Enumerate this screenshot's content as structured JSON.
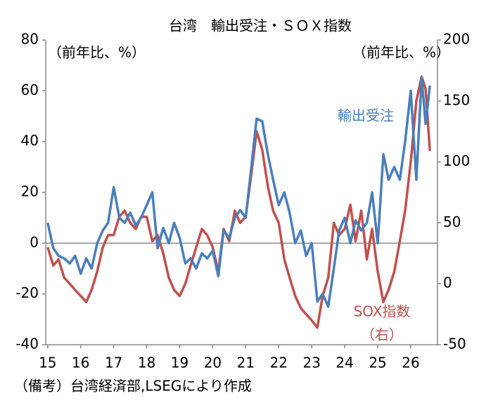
{
  "chart_data": {
    "type": "line",
    "title": "台湾　輸出受注・ＳＯＸ指数",
    "y_label": "（前年比、%）",
    "y2_label": "（前年比、%）",
    "note": "（備考）台湾経済部,LSEGにより作成",
    "x": [
      2015,
      2015.17,
      2015.33,
      2015.5,
      2015.67,
      2015.83,
      2016,
      2016.17,
      2016.33,
      2016.5,
      2016.67,
      2016.83,
      2017,
      2017.17,
      2017.33,
      2017.5,
      2017.67,
      2017.83,
      2018,
      2018.17,
      2018.33,
      2018.5,
      2018.67,
      2018.83,
      2019,
      2019.17,
      2019.33,
      2019.5,
      2019.67,
      2019.83,
      2020,
      2020.17,
      2020.33,
      2020.5,
      2020.67,
      2020.83,
      2021,
      2021.17,
      2021.33,
      2021.5,
      2021.67,
      2021.83,
      2022,
      2022.17,
      2022.33,
      2022.5,
      2022.67,
      2022.83,
      2023,
      2023.17,
      2023.33,
      2023.5,
      2023.67,
      2023.83,
      2024,
      2024.17,
      2024.33,
      2024.5,
      2024.67,
      2024.83,
      2025,
      2025.17,
      2025.33,
      2025.5,
      2025.67,
      2025.83,
      2026,
      2026.17,
      2026.33,
      2026.45,
      2026.58
    ],
    "series": [
      {
        "name": "輸出受注",
        "color": "#4a7ebb",
        "axis": "y",
        "values": [
          8,
          -2,
          -5,
          -6,
          -8,
          -5,
          -12,
          -6,
          -10,
          0,
          5,
          8,
          22,
          10,
          8,
          12,
          7,
          10,
          15,
          20,
          -2,
          6,
          0,
          8,
          2,
          -8,
          -6,
          -10,
          -4,
          -6,
          -3,
          -13,
          5,
          2,
          10,
          13,
          10,
          30,
          49,
          48,
          35,
          25,
          15,
          20,
          12,
          0,
          5,
          -5,
          0,
          -23,
          -20,
          -25,
          -10,
          5,
          10,
          0,
          9,
          5,
          8,
          20,
          0,
          35,
          25,
          30,
          25,
          40,
          60,
          25,
          65,
          47,
          62
        ]
      },
      {
        "name": "SOX指数",
        "color": "#c0504d",
        "axis": "y2",
        "values": [
          30,
          15,
          20,
          5,
          0,
          -5,
          -10,
          -15,
          -5,
          10,
          30,
          40,
          40,
          55,
          60,
          50,
          45,
          55,
          55,
          35,
          40,
          25,
          5,
          -5,
          -10,
          0,
          15,
          30,
          45,
          40,
          30,
          10,
          45,
          35,
          60,
          50,
          55,
          90,
          125,
          110,
          80,
          60,
          50,
          20,
          5,
          -10,
          -20,
          -25,
          -30,
          -36,
          -10,
          5,
          50,
          40,
          45,
          65,
          35,
          60,
          20,
          45,
          10,
          -15,
          -5,
          10,
          35,
          60,
          100,
          150,
          170,
          160,
          109
        ]
      }
    ],
    "series_label_suffix": "（右）",
    "xlim": [
      2014.94,
      2026.81
    ],
    "xticks": [
      {
        "value": 2015,
        "label": "15"
      },
      {
        "value": 2016,
        "label": "16"
      },
      {
        "value": 2017,
        "label": "17"
      },
      {
        "value": 2018,
        "label": "18"
      },
      {
        "value": 2019,
        "label": "19"
      },
      {
        "value": 2020,
        "label": "20"
      },
      {
        "value": 2021,
        "label": "21"
      },
      {
        "value": 2022,
        "label": "22"
      },
      {
        "value": 2023,
        "label": "23"
      },
      {
        "value": 2024,
        "label": "24"
      },
      {
        "value": 2025,
        "label": "25"
      },
      {
        "value": 2026,
        "label": "26"
      }
    ],
    "ylim": [
      -40,
      80
    ],
    "yticks": [
      -40,
      -20,
      0,
      20,
      40,
      60,
      80
    ],
    "y2lim": [
      -50,
      200
    ],
    "y2ticks": [
      -50,
      0,
      50,
      100,
      150,
      200
    ]
  }
}
